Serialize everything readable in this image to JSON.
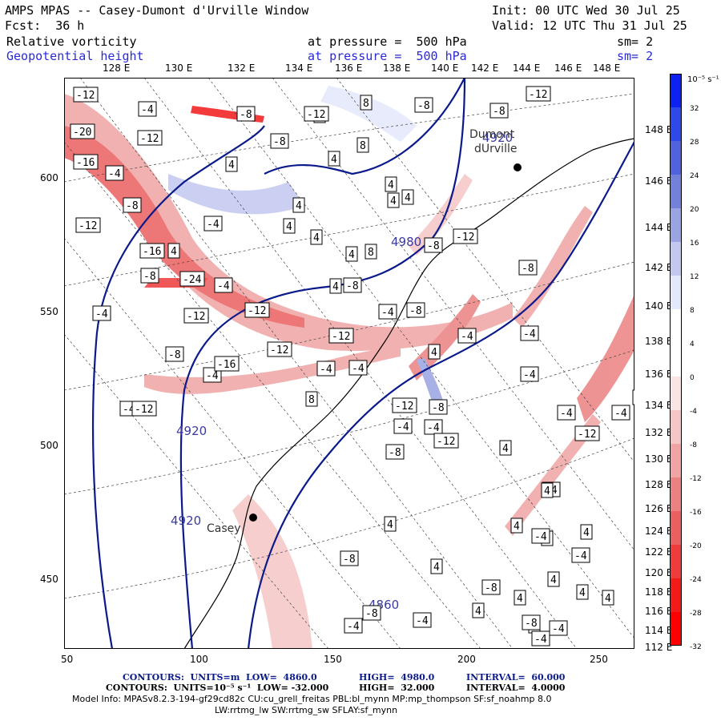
{
  "header": {
    "title": "AMPS MPAS -- Casey-Dumont d'Urville Window",
    "init": "Init: 00 UTC Wed 30 Jul 25",
    "fcst": "Fcst:  36 h",
    "valid": "Valid: 12 UTC Thu 31 Jul 25",
    "field1_name": "Relative vorticity",
    "field1_level": "at pressure =  500 hPa",
    "field1_sm": "sm= 2",
    "field2_name": "Geopotential height",
    "field2_level": "at pressure =  500 hPa",
    "field2_sm": "sm= 2"
  },
  "axes": {
    "top_lon": [
      "128 E",
      "130 E",
      "132 E",
      "134 E",
      "136 E",
      "138 E",
      "140 E",
      "142 E",
      "144 E",
      "146 E",
      "148 E"
    ],
    "right_lon": [
      "148 E",
      "146 E",
      "144 E",
      "142 E",
      "140 E",
      "138 E",
      "136 E",
      "134 E",
      "132 E",
      "130 E",
      "128 E",
      "126 E",
      "124 E",
      "122 E",
      "120 E",
      "118 E",
      "116 E",
      "114 E",
      "112 E"
    ],
    "x_ticks": [
      "50",
      "100",
      "150",
      "200",
      "250"
    ],
    "y_ticks": [
      "600",
      "550",
      "500",
      "450"
    ]
  },
  "colorbar": {
    "unit": "10⁻⁵ s⁻¹",
    "labels": [
      "32",
      "28",
      "24",
      "20",
      "16",
      "12",
      "8",
      "4",
      "0",
      "-4",
      "-8",
      "-12",
      "-16",
      "-20",
      "-24",
      "-28",
      "-32"
    ],
    "colors": [
      "#0d21f0",
      "#2f48e8",
      "#4f64dc",
      "#7381d8",
      "#9aa4e2",
      "#c2c8f0",
      "#e4e8fb",
      "#ffffff",
      "#ffffff",
      "#fbe4e4",
      "#f5c6c6",
      "#f0a4a4",
      "#ec8181",
      "#ea5f5f",
      "#ee3c3c",
      "#f31a1a",
      "#ff0000"
    ]
  },
  "stations": {
    "casey": "Casey",
    "dumont": "Dumont",
    "durville": "dUrville"
  },
  "height_labels": {
    "h4920_a": "4920",
    "h4920_b": "4920",
    "h4980": "4980",
    "h4920_c": "4920",
    "h4860": "4860"
  },
  "vort_labels": [
    "-12",
    "-4",
    "-8",
    "8",
    "-12",
    "-8",
    "8",
    "-8",
    "-12",
    "-20",
    "-12",
    "-16",
    "-4",
    "-8",
    "4",
    "-8",
    "-4",
    "-12",
    "-16",
    "4",
    "-24",
    "-4",
    "-8",
    "-4",
    "-12",
    "-12",
    "-12",
    "-8",
    "-4",
    "-16",
    "-4",
    "-12",
    "8",
    "-4",
    "-4",
    "4",
    "-4",
    "-8",
    "-4",
    "-8",
    "-4",
    "-4",
    "-12",
    "-8",
    "-4",
    "-8",
    "-4",
    "-12",
    "-4",
    "4",
    "8",
    "4",
    "4",
    "4",
    "8",
    "4",
    "4",
    "4",
    "4",
    "4",
    "4",
    "-8",
    "-12",
    "-12",
    "-4",
    "4",
    "-4",
    "4",
    "4",
    "-4",
    "4",
    "4",
    "4",
    "-4",
    "-4",
    "-8",
    "-8",
    "4",
    "4",
    "-12",
    "4",
    "-4",
    "4",
    "-4",
    "-8",
    "-8",
    "-4",
    "4",
    "4",
    "-4",
    "4",
    "-8",
    "-8",
    "-4"
  ],
  "footer": {
    "line1_contours": "CONTOURS:  UNITS=m  LOW=  4860.0",
    "line1_high": "HIGH=  4980.0",
    "line1_interval": "INTERVAL=  60.000",
    "line2_contours": "CONTOURS:  UNITS=10⁻⁵ s⁻¹  LOW= -32.000",
    "line2_high": "HIGH=  32.000",
    "line2_interval": "INTERVAL=  4.0000",
    "line3": "Model Info: MPASv8.2.3-194-gf29cd82c CU:cu_grell_freitas PBL:bl_mynn MP:mp_thompson SF:sf_noahmp 8.0",
    "line4": "LW:rrtmg_lw SW:rrtmg_sw SFLAY:sf_mynn"
  }
}
